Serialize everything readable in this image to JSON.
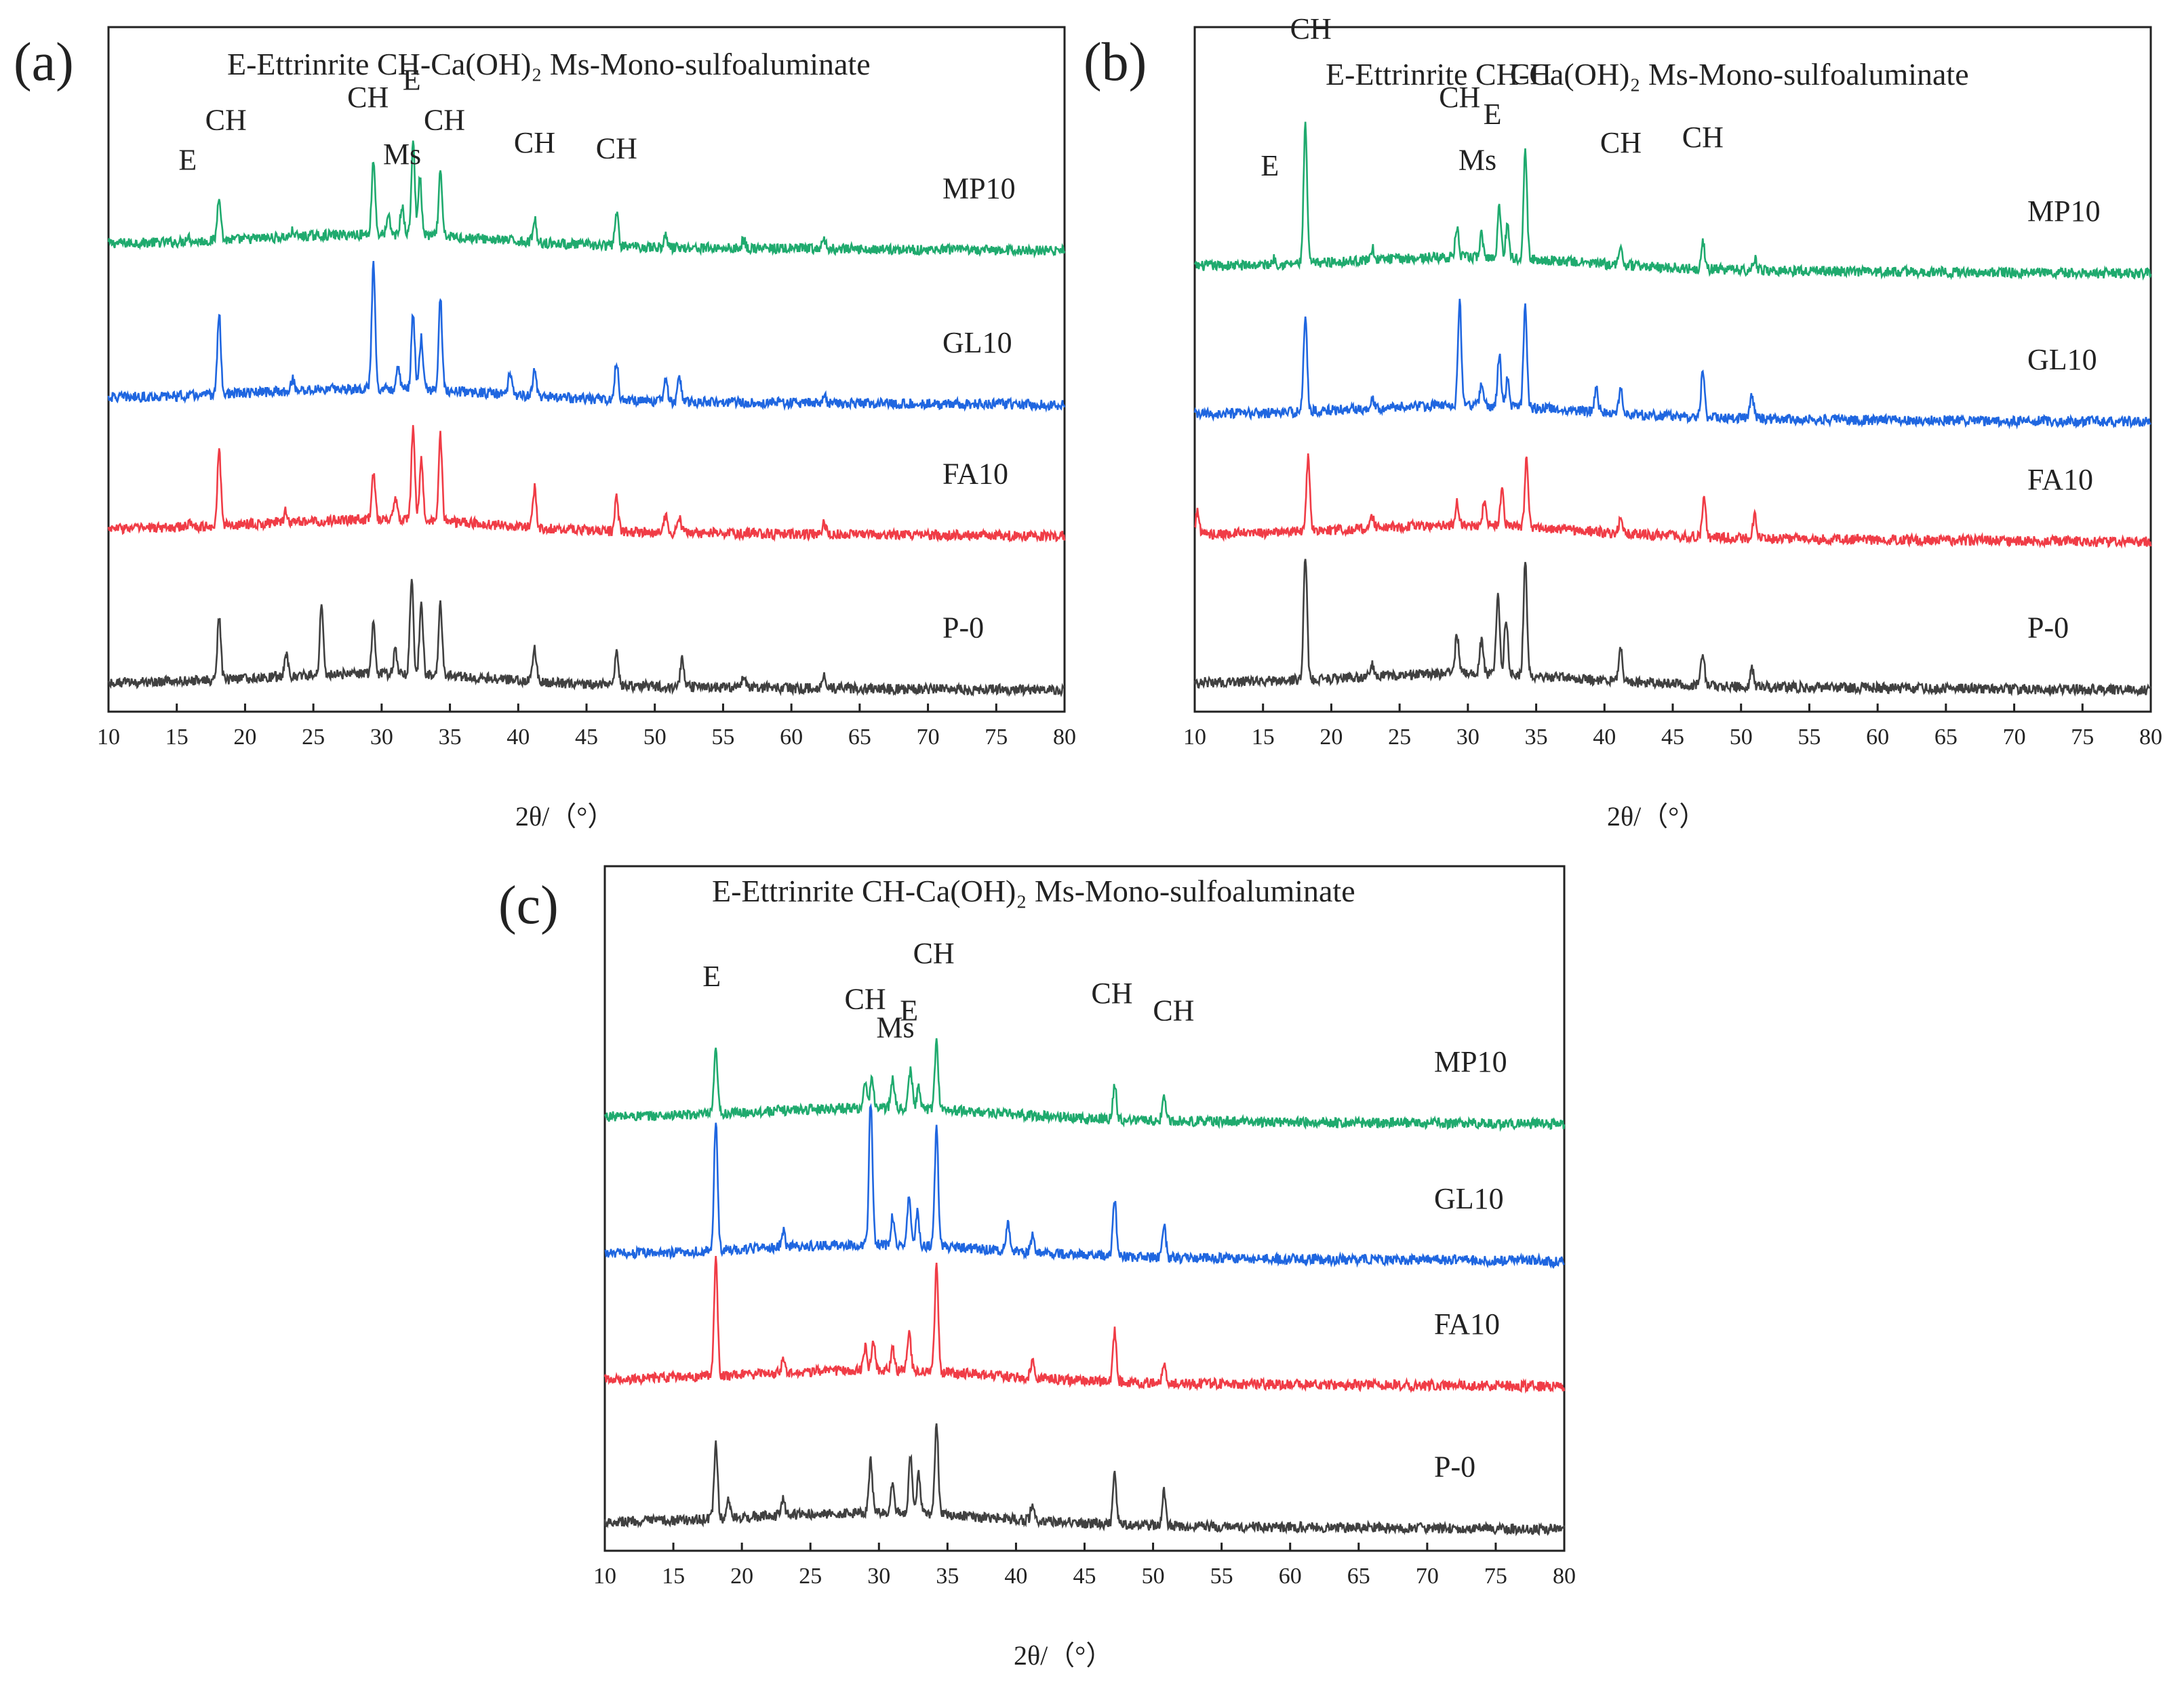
{
  "chart_data": [
    {
      "type": "line",
      "panel_label": "(a)",
      "legend_text": "E-Ettrinrite    CH-Ca(OH)₂  Ms-Mono-sulfoaluminate",
      "xlabel": "2θ/（°）",
      "xlim": [
        10,
        80
      ],
      "ylabel": "",
      "x_ticks": [
        10,
        15,
        20,
        25,
        30,
        35,
        40,
        45,
        50,
        55,
        60,
        65,
        70,
        75,
        80
      ],
      "series": [
        {
          "name": "MP10",
          "color": "#1faa6e",
          "offset": 0.82,
          "peaks": [
            [
              15.8,
              0.01
            ],
            [
              18.1,
              0.08
            ],
            [
              23.5,
              0.01
            ],
            [
              29.4,
              0.13
            ],
            [
              30.5,
              0.03
            ],
            [
              31.5,
              0.05
            ],
            [
              32.3,
              0.16
            ],
            [
              32.8,
              0.1
            ],
            [
              34.3,
              0.11
            ],
            [
              41.2,
              0.04
            ],
            [
              47.2,
              0.06
            ],
            [
              50.8,
              0.02
            ],
            [
              56.5,
              0.015
            ],
            [
              62.4,
              0.015
            ]
          ]
        },
        {
          "name": "GL10",
          "color": "#1f66e0",
          "offset": 0.55,
          "peaks": [
            [
              18.1,
              0.14
            ],
            [
              23.5,
              0.02
            ],
            [
              29.4,
              0.22
            ],
            [
              31.2,
              0.04
            ],
            [
              32.3,
              0.13
            ],
            [
              32.9,
              0.09
            ],
            [
              34.3,
              0.16
            ],
            [
              39.4,
              0.04
            ],
            [
              41.2,
              0.05
            ],
            [
              47.2,
              0.07
            ],
            [
              50.8,
              0.04
            ],
            [
              51.8,
              0.04
            ],
            [
              62.4,
              0.015
            ]
          ]
        },
        {
          "name": "FA10",
          "color": "#f03c46",
          "offset": 0.32,
          "peaks": [
            [
              16.0,
              0.01
            ],
            [
              18.1,
              0.13
            ],
            [
              23.0,
              0.02
            ],
            [
              29.4,
              0.08
            ],
            [
              31.0,
              0.04
            ],
            [
              32.3,
              0.16
            ],
            [
              32.9,
              0.11
            ],
            [
              34.3,
              0.15
            ],
            [
              41.2,
              0.07
            ],
            [
              47.2,
              0.06
            ],
            [
              50.8,
              0.03
            ],
            [
              51.8,
              0.03
            ],
            [
              62.4,
              0.02
            ]
          ]
        },
        {
          "name": "P-0",
          "color": "#404040",
          "offset": 0.05,
          "peaks": [
            [
              18.1,
              0.11
            ],
            [
              23.0,
              0.04
            ],
            [
              25.6,
              0.12
            ],
            [
              29.4,
              0.09
            ],
            [
              31.0,
              0.04
            ],
            [
              32.2,
              0.17
            ],
            [
              32.9,
              0.13
            ],
            [
              34.3,
              0.13
            ],
            [
              41.2,
              0.06
            ],
            [
              47.2,
              0.06
            ],
            [
              52.0,
              0.05
            ],
            [
              56.5,
              0.02
            ],
            [
              62.4,
              0.02
            ]
          ]
        }
      ],
      "annotations": [
        {
          "text": "E",
          "x": 15.8,
          "y": 0.95
        },
        {
          "text": "CH",
          "x": 18.6,
          "y": 1.02
        },
        {
          "text": "CH",
          "x": 29.0,
          "y": 1.06
        },
        {
          "text": "E",
          "x": 32.2,
          "y": 1.09
        },
        {
          "text": "Ms",
          "x": 31.5,
          "y": 0.96
        },
        {
          "text": "CH",
          "x": 34.6,
          "y": 1.02
        },
        {
          "text": "CH",
          "x": 41.2,
          "y": 0.98
        },
        {
          "text": "CH",
          "x": 47.2,
          "y": 0.97
        }
      ]
    },
    {
      "type": "line",
      "panel_label": "(b)",
      "legend_text": "E-Ettrinrite    CH-Ca(OH)₂  Ms-Mono-sulfoaluminate",
      "xlabel": "2θ/（°）",
      "xlim": [
        10,
        80
      ],
      "ylabel": "",
      "x_ticks": [
        10,
        15,
        20,
        25,
        30,
        35,
        40,
        45,
        50,
        55,
        60,
        65,
        70,
        75,
        80
      ],
      "series": [
        {
          "name": "MP10",
          "color": "#1faa6e",
          "offset": 0.78,
          "peaks": [
            [
              15.8,
              0.01
            ],
            [
              18.1,
              0.24
            ],
            [
              23.0,
              0.02
            ],
            [
              29.2,
              0.05
            ],
            [
              31.0,
              0.04
            ],
            [
              32.3,
              0.09
            ],
            [
              32.9,
              0.06
            ],
            [
              34.2,
              0.19
            ],
            [
              41.2,
              0.03
            ],
            [
              47.2,
              0.05
            ],
            [
              51.0,
              0.02
            ]
          ]
        },
        {
          "name": "GL10",
          "color": "#1f66e0",
          "offset": 0.52,
          "peaks": [
            [
              18.1,
              0.17
            ],
            [
              23.0,
              0.02
            ],
            [
              29.4,
              0.18
            ],
            [
              31.0,
              0.04
            ],
            [
              32.3,
              0.09
            ],
            [
              32.9,
              0.05
            ],
            [
              34.2,
              0.18
            ],
            [
              39.4,
              0.04
            ],
            [
              41.2,
              0.04
            ],
            [
              47.2,
              0.08
            ],
            [
              50.8,
              0.04
            ]
          ]
        },
        {
          "name": "FA10",
          "color": "#f03c46",
          "offset": 0.31,
          "peaks": [
            [
              10.2,
              0.04
            ],
            [
              18.3,
              0.13
            ],
            [
              23.0,
              0.02
            ],
            [
              29.2,
              0.04
            ],
            [
              31.2,
              0.04
            ],
            [
              32.5,
              0.06
            ],
            [
              34.3,
              0.12
            ],
            [
              41.2,
              0.03
            ],
            [
              47.3,
              0.07
            ],
            [
              51.0,
              0.04
            ]
          ]
        },
        {
          "name": "P-0",
          "color": "#404040",
          "offset": 0.05,
          "peaks": [
            [
              18.1,
              0.22
            ],
            [
              23.0,
              0.02
            ],
            [
              29.2,
              0.07
            ],
            [
              31.0,
              0.06
            ],
            [
              32.2,
              0.14
            ],
            [
              32.8,
              0.1
            ],
            [
              34.2,
              0.2
            ],
            [
              41.2,
              0.06
            ],
            [
              47.2,
              0.06
            ],
            [
              50.8,
              0.03
            ]
          ]
        }
      ],
      "annotations": [
        {
          "text": "E",
          "x": 15.5,
          "y": 0.94
        },
        {
          "text": "CH",
          "x": 18.5,
          "y": 1.18
        },
        {
          "text": "CH",
          "x": 29.4,
          "y": 1.06
        },
        {
          "text": "E",
          "x": 31.8,
          "y": 1.03
        },
        {
          "text": "Ms",
          "x": 30.7,
          "y": 0.95
        },
        {
          "text": "CH",
          "x": 34.6,
          "y": 1.1
        },
        {
          "text": "CH",
          "x": 41.2,
          "y": 0.98
        },
        {
          "text": "CH",
          "x": 47.2,
          "y": 0.99
        }
      ]
    },
    {
      "type": "line",
      "panel_label": "(c)",
      "legend_text": "E-Ettrinrite    CH-Ca(OH)₂  Ms-Mono-sulfoaluminate",
      "xlabel": "2θ/（°）",
      "xlim": [
        10,
        80
      ],
      "ylabel": "",
      "x_ticks": [
        10,
        15,
        20,
        25,
        30,
        35,
        40,
        45,
        50,
        55,
        60,
        65,
        70,
        75,
        80
      ],
      "series": [
        {
          "name": "MP10",
          "color": "#1faa6e",
          "offset": 0.76,
          "peaks": [
            [
              18.1,
              0.11
            ],
            [
              29.0,
              0.04
            ],
            [
              29.5,
              0.05
            ],
            [
              31.0,
              0.05
            ],
            [
              32.3,
              0.07
            ],
            [
              32.9,
              0.04
            ],
            [
              34.2,
              0.12
            ],
            [
              47.2,
              0.06
            ],
            [
              50.8,
              0.04
            ]
          ]
        },
        {
          "name": "GL10",
          "color": "#1f66e0",
          "offset": 0.52,
          "peaks": [
            [
              18.1,
              0.23
            ],
            [
              23.0,
              0.03
            ],
            [
              29.4,
              0.25
            ],
            [
              31.0,
              0.05
            ],
            [
              32.2,
              0.09
            ],
            [
              32.8,
              0.06
            ],
            [
              34.2,
              0.21
            ],
            [
              39.4,
              0.05
            ],
            [
              41.2,
              0.03
            ],
            [
              47.2,
              0.1
            ],
            [
              50.8,
              0.06
            ]
          ]
        },
        {
          "name": "FA10",
          "color": "#f03c46",
          "offset": 0.3,
          "peaks": [
            [
              18.1,
              0.21
            ],
            [
              23.0,
              0.02
            ],
            [
              29.0,
              0.04
            ],
            [
              29.6,
              0.05
            ],
            [
              31.0,
              0.04
            ],
            [
              32.2,
              0.07
            ],
            [
              34.2,
              0.19
            ],
            [
              41.2,
              0.03
            ],
            [
              47.2,
              0.09
            ],
            [
              50.8,
              0.03
            ]
          ]
        },
        {
          "name": "P-0",
          "color": "#404040",
          "offset": 0.05,
          "peaks": [
            [
              18.1,
              0.13
            ],
            [
              19.0,
              0.03
            ],
            [
              23.0,
              0.03
            ],
            [
              29.4,
              0.09
            ],
            [
              31.0,
              0.05
            ],
            [
              32.3,
              0.1
            ],
            [
              32.9,
              0.07
            ],
            [
              34.2,
              0.16
            ],
            [
              41.2,
              0.03
            ],
            [
              47.2,
              0.09
            ],
            [
              50.8,
              0.06
            ]
          ]
        }
      ],
      "annotations": [
        {
          "text": "E",
          "x": 17.8,
          "y": 0.99
        },
        {
          "text": "CH",
          "x": 29.0,
          "y": 0.95
        },
        {
          "text": "Ms",
          "x": 31.2,
          "y": 0.9
        },
        {
          "text": "E",
          "x": 32.2,
          "y": 0.93
        },
        {
          "text": "CH",
          "x": 34.0,
          "y": 1.03
        },
        {
          "text": "CH",
          "x": 47.0,
          "y": 0.96
        },
        {
          "text": "CH",
          "x": 51.5,
          "y": 0.93
        }
      ]
    }
  ]
}
